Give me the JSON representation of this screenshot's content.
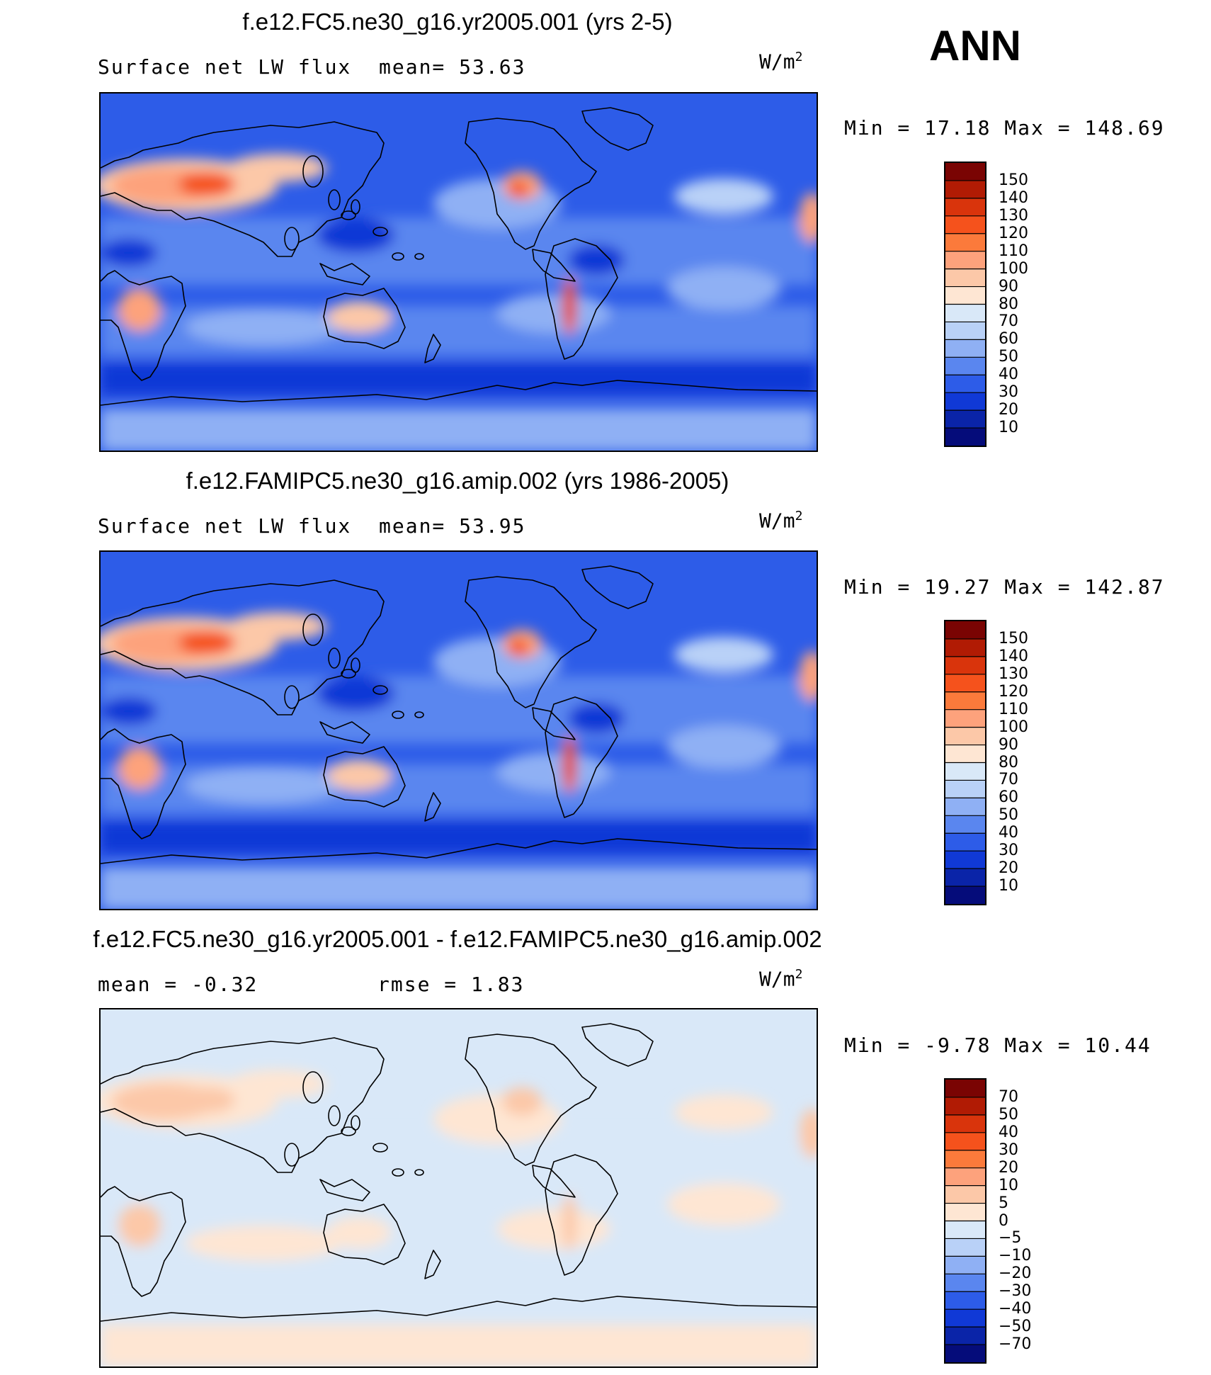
{
  "season": "ANN",
  "units_base": "W/m",
  "units_exp": "2",
  "panels": [
    {
      "title": "f.e12.FC5.ne30_g16.yr2005.001 (yrs 2-5)",
      "left_label": "Surface net LW flux",
      "mid_label": "mean=  53.63",
      "minmax": "Min =  17.18 Max = 148.69",
      "colorbar": {
        "labels": [
          "150",
          "140",
          "130",
          "120",
          "110",
          "100",
          "90",
          "80",
          "70",
          "60",
          "50",
          "40",
          "30",
          "20",
          "10"
        ],
        "colors": [
          "#7a0403",
          "#b11b04",
          "#d9340c",
          "#f5521c",
          "#fb7a3b",
          "#fda27c",
          "#fcc8a8",
          "#fee6d3",
          "#d9e8f8",
          "#b9d1f7",
          "#8fb0f4",
          "#5a86ef",
          "#2d5ce8",
          "#1039d6",
          "#0a24a8",
          "#050c7a"
        ]
      },
      "map_shading": {
        "ocean": "#2d5ce8",
        "subtrop": "#5a86ef",
        "light": "#8fb0f4",
        "pale": "#b9d1f7",
        "desert_light": "#fcc8a8",
        "desert_mid": "#fda27c",
        "desert_hot": "#f5521c",
        "core": "#d9340c",
        "dark": "#1039d6"
      }
    },
    {
      "title": "f.e12.FAMIPC5.ne30_g16.amip.002 (yrs 1986-2005)",
      "left_label": "Surface net LW flux",
      "mid_label": "mean=  53.95",
      "minmax": "Min =  19.27 Max = 142.87",
      "colorbar": {
        "labels": [
          "150",
          "140",
          "130",
          "120",
          "110",
          "100",
          "90",
          "80",
          "70",
          "60",
          "50",
          "40",
          "30",
          "20",
          "10"
        ],
        "colors": [
          "#7a0403",
          "#b11b04",
          "#d9340c",
          "#f5521c",
          "#fb7a3b",
          "#fda27c",
          "#fcc8a8",
          "#fee6d3",
          "#d9e8f8",
          "#b9d1f7",
          "#8fb0f4",
          "#5a86ef",
          "#2d5ce8",
          "#1039d6",
          "#0a24a8",
          "#050c7a"
        ]
      },
      "map_shading": {
        "ocean": "#2d5ce8",
        "subtrop": "#5a86ef",
        "light": "#8fb0f4",
        "pale": "#b9d1f7",
        "desert_light": "#fcc8a8",
        "desert_mid": "#fda27c",
        "desert_hot": "#f5521c",
        "core": "#d9340c",
        "dark": "#1039d6"
      }
    },
    {
      "title": "f.e12.FC5.ne30_g16.yr2005.001 - f.e12.FAMIPC5.ne30_g16.amip.002",
      "left_label": "mean =  -0.32",
      "mid_label": "rmse =   1.83",
      "minmax": "Min =  -9.78 Max =  10.44",
      "colorbar": {
        "labels": [
          "70",
          "50",
          "40",
          "30",
          "20",
          "10",
          "5",
          "0",
          "-5",
          "-10",
          "-20",
          "-30",
          "-40",
          "-50",
          "-70"
        ],
        "colors": [
          "#7a0403",
          "#b11b04",
          "#d9340c",
          "#f5521c",
          "#fb7a3b",
          "#fda27c",
          "#fcc8a8",
          "#fee6d3",
          "#d9e8f8",
          "#b9d1f7",
          "#8fb0f4",
          "#5a86ef",
          "#2d5ce8",
          "#1039d6",
          "#0a24a8",
          "#050c7a"
        ]
      },
      "map_shading": {
        "ocean": "#d9e8f8",
        "subtrop": "#d9e8f8",
        "light": "#fee6d3",
        "pale": "#fee6d3",
        "desert_light": "#fee6d3",
        "desert_mid": "#fcc8a8",
        "desert_hot": "#fcc8a8",
        "core": "#fcc8a8",
        "dark": "#d9e8f8"
      }
    }
  ]
}
